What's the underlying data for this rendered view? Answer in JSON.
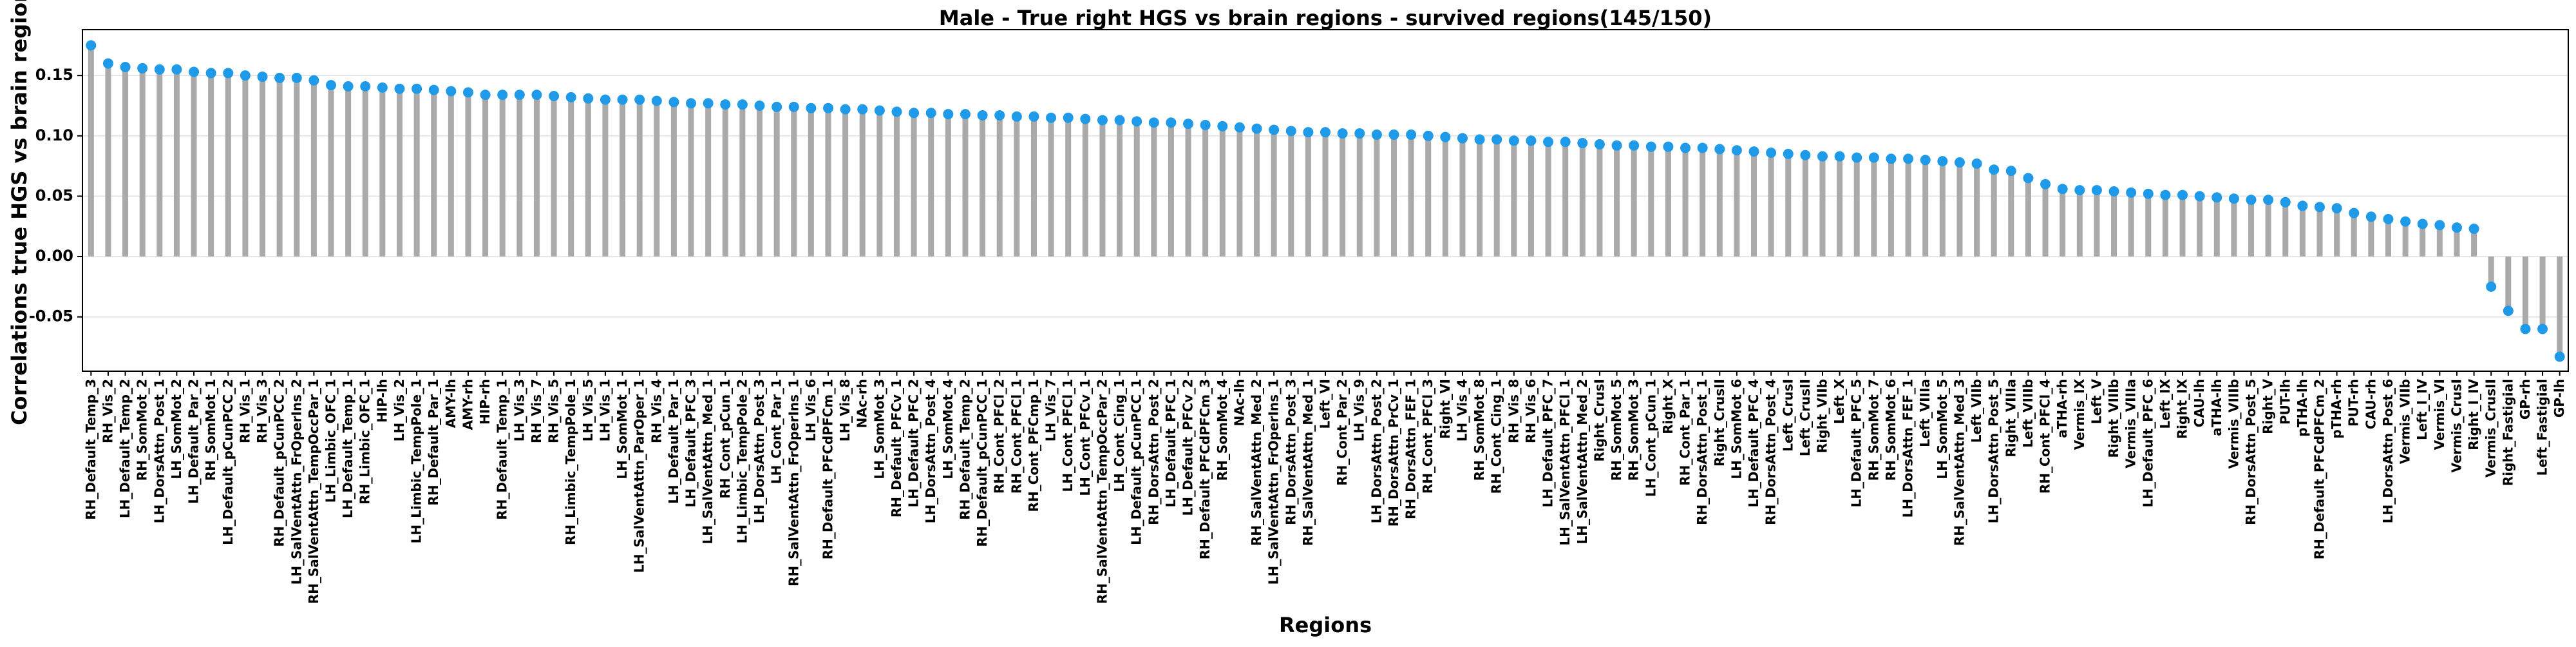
{
  "chart_data": {
    "type": "lollipop",
    "title": "Male - True right HGS vs brain regions - survived regions(145/150)",
    "x_label": "Regions",
    "y_label": "Correlations true HGS vs brain regions",
    "stem_color": "#aaaaaa",
    "color": "#1f9ae8",
    "grid": true,
    "ylim": [
      -0.095,
      0.188
    ],
    "yticks": [
      {
        "value": -0.05,
        "label": "-0.05"
      },
      {
        "value": 0,
        "label": "0.00"
      },
      {
        "value": 0.05,
        "label": "0.05"
      },
      {
        "value": 0.1,
        "label": "0.10"
      },
      {
        "value": 0.15,
        "label": "0.15"
      }
    ],
    "categories": [
      "RH_Default_Temp_3",
      "RH_Vis_2",
      "LH_Default_Temp_2",
      "RH_SomMot_2",
      "LH_DorsAttn_Post_1",
      "LH_SomMot_2",
      "LH_Default_Par_2",
      "RH_SomMot_1",
      "LH_Default_pCunPCC_2",
      "RH_Vis_1",
      "RH_Vis_3",
      "RH_Default_pCunPCC_2",
      "LH_SalVentAttn_FrOperIns_2",
      "RH_SalVentAttn_TempOccPar_1",
      "LH_Limbic_OFC_1",
      "LH_Default_Temp_1",
      "RH_Limbic_OFC_1",
      "HIP-lh",
      "LH_Vis_2",
      "LH_Limbic_TempPole_1",
      "RH_Default_Par_1",
      "AMY-lh",
      "AMY-rh",
      "HIP-rh",
      "RH_Default_Temp_1",
      "LH_Vis_3",
      "RH_Vis_7",
      "RH_Vis_5",
      "RH_Limbic_TempPole_1",
      "LH_Vis_5",
      "LH_Vis_1",
      "LH_SomMot_1",
      "LH_SalVentAttn_ParOper_1",
      "RH_Vis_4",
      "LH_Default_Par_1",
      "LH_Default_PFC_3",
      "LH_SalVentAttn_Med_1",
      "RH_Cont_pCun_1",
      "LH_Limbic_TempPole_2",
      "LH_DorsAttn_Post_3",
      "LH_Cont_Par_1",
      "RH_SalVentAttn_FrOperIns_1",
      "LH_Vis_6",
      "RH_Default_PFCdPFCm_1",
      "LH_Vis_8",
      "NAc-rh",
      "LH_SomMot_3",
      "RH_Default_PFCv_1",
      "LH_Default_PFC_2",
      "LH_DorsAttn_Post_4",
      "LH_SomMot_4",
      "RH_Default_Temp_2",
      "RH_Default_pCunPCC_1",
      "RH_Cont_PFCl_2",
      "RH_Cont_PFCl_1",
      "RH_Cont_PFCmp_1",
      "LH_Vis_7",
      "LH_Cont_PFCl_1",
      "LH_Cont_PFCv_1",
      "RH_SalVentAttn_TempOccPar_2",
      "LH_Cont_Cing_1",
      "LH_Default_pCunPCC_1",
      "RH_DorsAttn_Post_2",
      "LH_Default_PFC_1",
      "LH_Default_PFCv_2",
      "RH_Default_PFCdPFCm_3",
      "RH_SomMot_4",
      "NAc-lh",
      "RH_SalVentAttn_Med_2",
      "LH_SalVentAttn_FrOperIns_1",
      "RH_DorsAttn_Post_3",
      "RH_SalVentAttn_Med_1",
      "Left_VI",
      "RH_Cont_Par_2",
      "LH_Vis_9",
      "LH_DorsAttn_Post_2",
      "RH_DorsAttn_PrCv_1",
      "RH_DorsAttn_FEF_1",
      "RH_Cont_PFCl_3",
      "Right_VI",
      "LH_Vis_4",
      "RH_SomMot_8",
      "RH_Cont_Cing_1",
      "RH_Vis_8",
      "RH_Vis_6",
      "LH_Default_PFC_7",
      "LH_SalVentAttn_PFCl_1",
      "LH_SalVentAttn_Med_2",
      "Right_CrusI",
      "RH_SomMot_5",
      "RH_SomMot_3",
      "LH_Cont_pCun_1",
      "Right_X",
      "RH_Cont_Par_1",
      "RH_DorsAttn_Post_1",
      "Right_CrusII",
      "LH_SomMot_6",
      "LH_Default_PFC_4",
      "RH_DorsAttn_Post_4",
      "Left_CrusI",
      "Left_CrusII",
      "Right_VIIb",
      "Left_X",
      "LH_Default_PFC_5",
      "RH_SomMot_7",
      "RH_SomMot_6",
      "LH_DorsAttn_FEF_1",
      "Left_VIIIa",
      "LH_SomMot_5",
      "RH_SalVentAttn_Med_3",
      "Left_VIIb",
      "LH_DorsAttn_Post_5",
      "Right_VIIIa",
      "Left_VIIIb",
      "RH_Cont_PFCl_4",
      "aTHA-rh",
      "Vermis_IX",
      "Left_V",
      "Right_VIIIb",
      "Vermis_VIIIa",
      "LH_Default_PFC_6",
      "Left_IX",
      "Right_IX",
      "CAU-lh",
      "aTHA-lh",
      "Vermis_VIIIb",
      "RH_DorsAttn_Post_5",
      "Right_V",
      "PUT-lh",
      "pTHA-lh",
      "RH_Default_PFCdPFCm_2",
      "pTHA-rh",
      "PUT-rh",
      "CAU-rh",
      "LH_DorsAttn_Post_6",
      "Vermis_VIIb",
      "Left_I_IV",
      "Vermis_VI",
      "Vermis_CrusI",
      "Right_I_IV",
      "Vermis_CrusII",
      "Right_Fastigial",
      "GP-rh",
      "Left_Fastigial",
      "GP-lh"
    ],
    "values": [
      0.175,
      0.16,
      0.157,
      0.156,
      0.155,
      0.155,
      0.153,
      0.152,
      0.152,
      0.15,
      0.149,
      0.148,
      0.148,
      0.146,
      0.142,
      0.141,
      0.141,
      0.14,
      0.139,
      0.139,
      0.138,
      0.137,
      0.136,
      0.134,
      0.134,
      0.134,
      0.134,
      0.133,
      0.132,
      0.131,
      0.13,
      0.13,
      0.13,
      0.129,
      0.128,
      0.127,
      0.127,
      0.126,
      0.126,
      0.125,
      0.124,
      0.124,
      0.123,
      0.123,
      0.122,
      0.122,
      0.121,
      0.12,
      0.119,
      0.119,
      0.118,
      0.118,
      0.117,
      0.117,
      0.116,
      0.116,
      0.115,
      0.115,
      0.114,
      0.113,
      0.113,
      0.112,
      0.111,
      0.111,
      0.11,
      0.109,
      0.108,
      0.107,
      0.106,
      0.105,
      0.104,
      0.103,
      0.103,
      0.102,
      0.102,
      0.101,
      0.101,
      0.101,
      0.1,
      0.099,
      0.098,
      0.097,
      0.097,
      0.096,
      0.096,
      0.095,
      0.095,
      0.094,
      0.093,
      0.092,
      0.092,
      0.091,
      0.091,
      0.09,
      0.09,
      0.089,
      0.088,
      0.087,
      0.086,
      0.085,
      0.084,
      0.083,
      0.083,
      0.082,
      0.082,
      0.081,
      0.081,
      0.08,
      0.079,
      0.078,
      0.077,
      0.072,
      0.071,
      0.065,
      0.06,
      0.056,
      0.055,
      0.055,
      0.054,
      0.053,
      0.052,
      0.051,
      0.051,
      0.05,
      0.049,
      0.048,
      0.047,
      0.047,
      0.045,
      0.042,
      0.041,
      0.04,
      0.036,
      0.033,
      0.031,
      0.029,
      0.027,
      0.026,
      0.024,
      0.023,
      -0.025,
      -0.045,
      -0.06,
      -0.06,
      -0.083
    ]
  }
}
